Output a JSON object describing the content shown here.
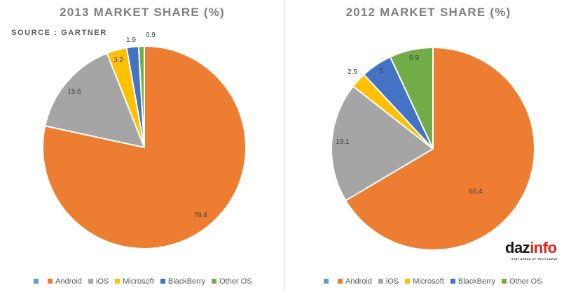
{
  "chart_data": [
    {
      "type": "pie",
      "title": "2013 MARKET SHARE (%)",
      "source": "SOURCE : GARTNER",
      "categories": [
        "",
        "Android",
        "iOS",
        "Microsoft",
        "BlackBerry",
        "Other OS"
      ],
      "values": [
        0,
        78.4,
        15.6,
        3.2,
        1.9,
        0.9
      ],
      "data_labels": [
        "",
        "78.4",
        "15.6",
        "3.2",
        "1.9",
        "0.9"
      ],
      "colors": [
        "#5b9bd5",
        "#ed7d31",
        "#a5a5a5",
        "#ffc000",
        "#4472c4",
        "#70ad47"
      ],
      "legend_position": "bottom"
    },
    {
      "type": "pie",
      "title": "2012 MARKET SHARE (%)",
      "categories": [
        "",
        "Android",
        "iOS",
        "Microsoft",
        "BlackBerry",
        "Other OS"
      ],
      "values": [
        0,
        66.4,
        19.1,
        2.5,
        5,
        6.9
      ],
      "data_labels": [
        "",
        "66.4",
        "19.1",
        "2.5",
        "5",
        "6.9"
      ],
      "colors": [
        "#5b9bd5",
        "#ed7d31",
        "#a5a5a5",
        "#ffc000",
        "#4472c4",
        "#70ad47"
      ],
      "legend_position": "bottom"
    }
  ],
  "logo": {
    "text_left": "daz",
    "text_right": "info",
    "tagline": "STAY AHEAD OF TECH CURVE"
  }
}
